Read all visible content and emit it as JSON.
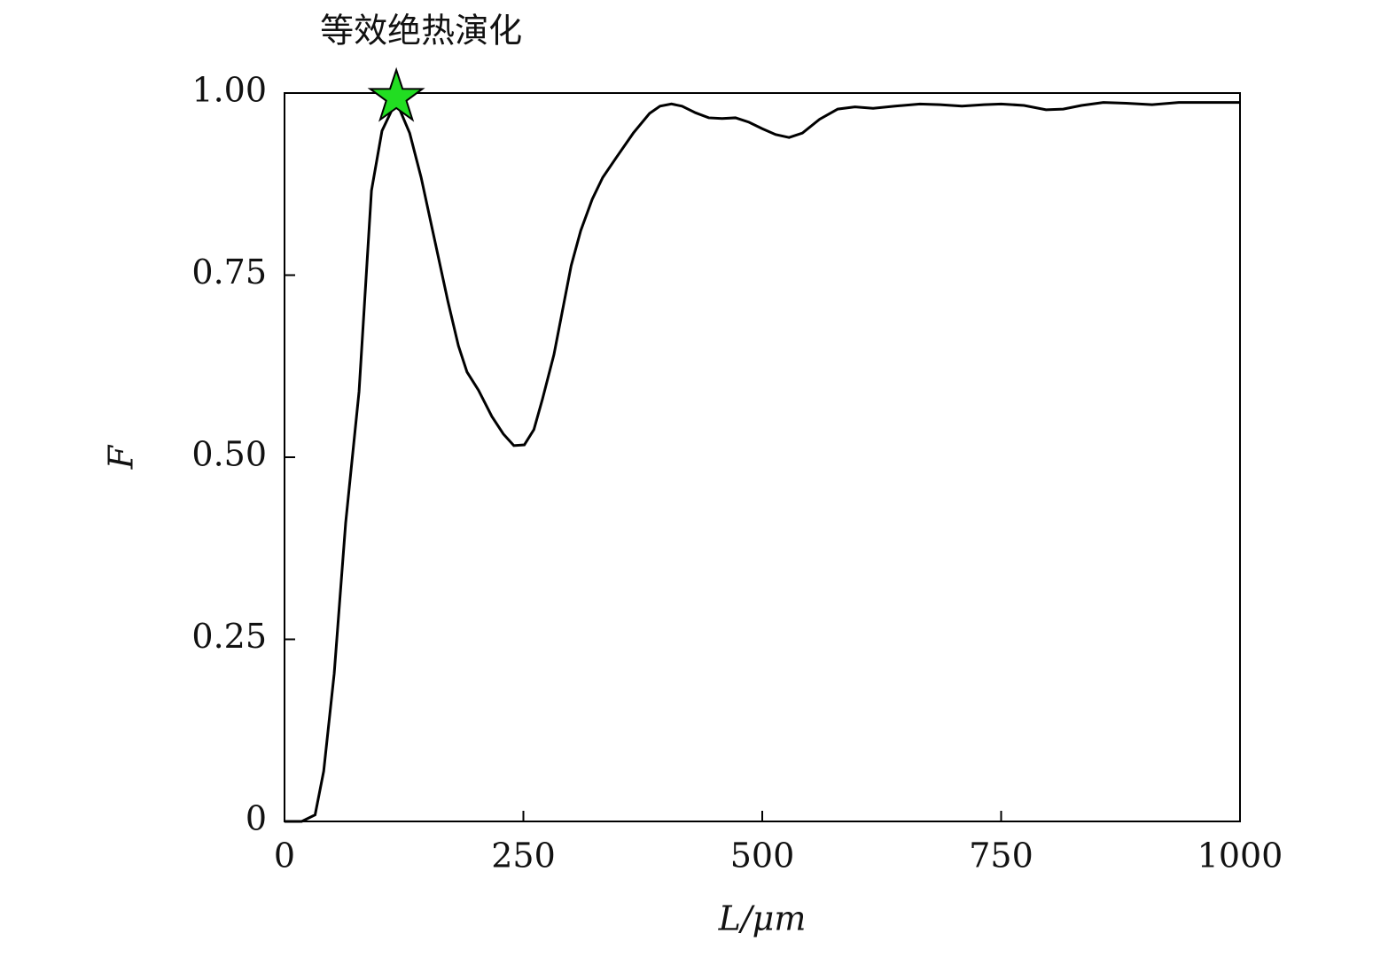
{
  "chart_data": {
    "type": "line",
    "xlabel": "L/μm",
    "ylabel": "F",
    "annotation": {
      "text": "等效绝热演化",
      "x": 117,
      "y": 0.994,
      "color": "#22dd22"
    },
    "series": [
      {
        "color": "#000000",
        "x": [
          0,
          18,
          32,
          41,
          52,
          64,
          78,
          91,
          102,
          115,
          121,
          131,
          143,
          157,
          171,
          182,
          191,
          203,
          217,
          229,
          240,
          251,
          261,
          270,
          282,
          300,
          310,
          322,
          333,
          347,
          365,
          382,
          393,
          405,
          416,
          430,
          444,
          458,
          472,
          486,
          500,
          514,
          528,
          542,
          560,
          579,
          597,
          616,
          639,
          665,
          686,
          709,
          732,
          750,
          774,
          797,
          815,
          834,
          857,
          881,
          908,
          936,
          964,
          1000
        ],
        "values": [
          0,
          0,
          0.009,
          0.069,
          0.203,
          0.41,
          0.59,
          0.866,
          0.948,
          0.984,
          0.976,
          0.945,
          0.884,
          0.799,
          0.714,
          0.653,
          0.617,
          0.592,
          0.556,
          0.532,
          0.516,
          0.517,
          0.538,
          0.58,
          0.641,
          0.763,
          0.811,
          0.854,
          0.884,
          0.911,
          0.945,
          0.972,
          0.982,
          0.985,
          0.982,
          0.973,
          0.966,
          0.965,
          0.966,
          0.96,
          0.951,
          0.943,
          0.939,
          0.945,
          0.964,
          0.978,
          0.981,
          0.979,
          0.982,
          0.985,
          0.984,
          0.982,
          0.984,
          0.985,
          0.983,
          0.977,
          0.978,
          0.983,
          0.987,
          0.986,
          0.984,
          0.987,
          0.987,
          0.987
        ]
      }
    ],
    "xlim": [
      0,
      1000
    ],
    "xticks": [
      0,
      250,
      500,
      750,
      1000
    ],
    "ylim": [
      0,
      1
    ],
    "yticks": [
      0,
      0.25,
      {
        "value": 0.5,
        "label": "0.50"
      },
      0.75,
      {
        "value": 1,
        "label": "1.00"
      }
    ]
  }
}
